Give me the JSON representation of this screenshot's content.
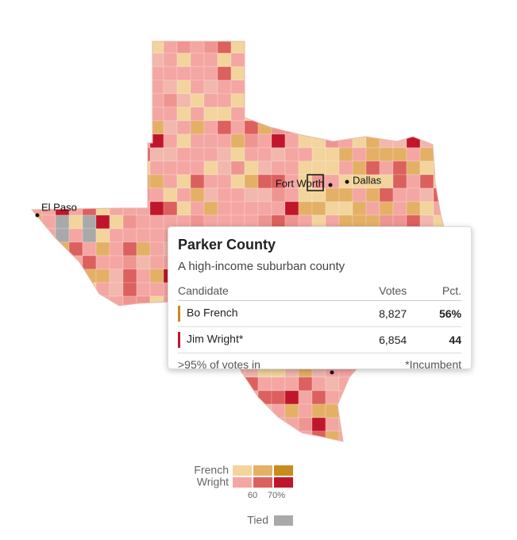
{
  "map": {
    "cities": [
      "El Paso",
      "Fort Worth",
      "Dallas"
    ],
    "tooltip": {
      "title": "Parker County",
      "subtitle": "A high-income suburban county",
      "header": [
        "Candidate",
        "Votes",
        "Pct."
      ],
      "rows": [
        [
          "Bo French",
          "8,827",
          "56%"
        ],
        [
          "Jim Wright*",
          "6,854",
          "44"
        ]
      ],
      "footer": [
        ">95% of votes in",
        "*Incumbent"
      ]
    },
    "legend": {
      "series": [
        {
          "name": "French",
          "colors": [
            "#f2d49c",
            "#e4b066",
            "#c98a1e"
          ]
        },
        {
          "name": "Wright",
          "colors": [
            "#f4a6a3",
            "#dc605d",
            "#c0162b"
          ]
        }
      ],
      "ticks": [
        "60",
        "70%"
      ],
      "tied": {
        "name": "Tied",
        "color": "#a9a9a9"
      }
    }
  }
}
